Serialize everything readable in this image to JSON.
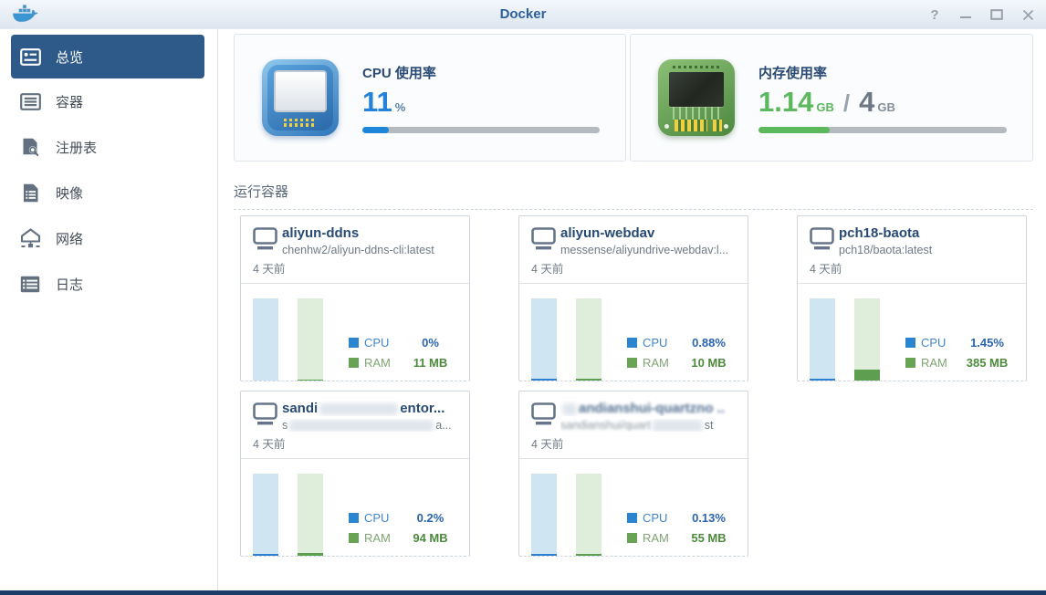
{
  "window": {
    "title": "Docker",
    "controls": {
      "help_glyph": "?"
    }
  },
  "colors": {
    "accent_blue": "#1e86d8",
    "accent_green": "#5cb85c",
    "sidebar_selected": "#2d5a88",
    "titlebar_text": "#2b5f9e",
    "bottom_bar": "#1c3c68"
  },
  "sidebar": {
    "items": [
      {
        "label": "总览",
        "icon": "overview-icon",
        "selected": true
      },
      {
        "label": "容器",
        "icon": "containers-icon",
        "selected": false
      },
      {
        "label": "注册表",
        "icon": "registry-icon",
        "selected": false
      },
      {
        "label": "映像",
        "icon": "image-icon",
        "selected": false
      },
      {
        "label": "网络",
        "icon": "network-icon",
        "selected": false
      },
      {
        "label": "日志",
        "icon": "log-icon",
        "selected": false
      }
    ]
  },
  "stats": {
    "cpu": {
      "label": "CPU 使用率",
      "value": "11",
      "unit": "%",
      "percent": 11
    },
    "memory": {
      "label": "内存使用率",
      "used": "1.14",
      "used_unit": "GB",
      "divider": "/",
      "total": "4",
      "total_unit": "GB",
      "percent": 28.5
    }
  },
  "running_section": {
    "title": "运行容器",
    "legend": {
      "cpu": "CPU",
      "ram": "RAM"
    },
    "containers": [
      {
        "name": "aliyun-ddns",
        "image": "chenhw2/aliyun-ddns-cli:latest",
        "age": "4 天前",
        "cpu": "0%",
        "ram": "11 MB",
        "cpu_bar_pct": 0,
        "ram_bar_pct": 1.5
      },
      {
        "name": "aliyun-webdav",
        "image": "messense/aliyundrive-webdav:l...",
        "age": "4 天前",
        "cpu": "0.88%",
        "ram": "10 MB",
        "cpu_bar_pct": 2,
        "ram_bar_pct": 2
      },
      {
        "name": "pch18-baota",
        "image": "pch18/baota:latest",
        "age": "4 天前",
        "cpu": "1.45%",
        "ram": "385 MB",
        "cpu_bar_pct": 2,
        "ram_bar_pct": 13
      },
      {
        "name_prefix": "sandi",
        "name_suffix": "entor...",
        "image_prefix": "s",
        "image_suffix": "a...",
        "age": "4 天前",
        "cpu": "0.2%",
        "ram": "94 MB",
        "cpu_bar_pct": 2,
        "ram_bar_pct": 3.5,
        "blurred": true
      },
      {
        "name_visible": "andianshui-quartzno ..",
        "image_prefix": "sandianshui/quart",
        "image_suffix": "st",
        "age": "4 天前",
        "cpu": "0.13%",
        "ram": "55 MB",
        "cpu_bar_pct": 2,
        "ram_bar_pct": 2.5,
        "blurred": true
      }
    ]
  }
}
